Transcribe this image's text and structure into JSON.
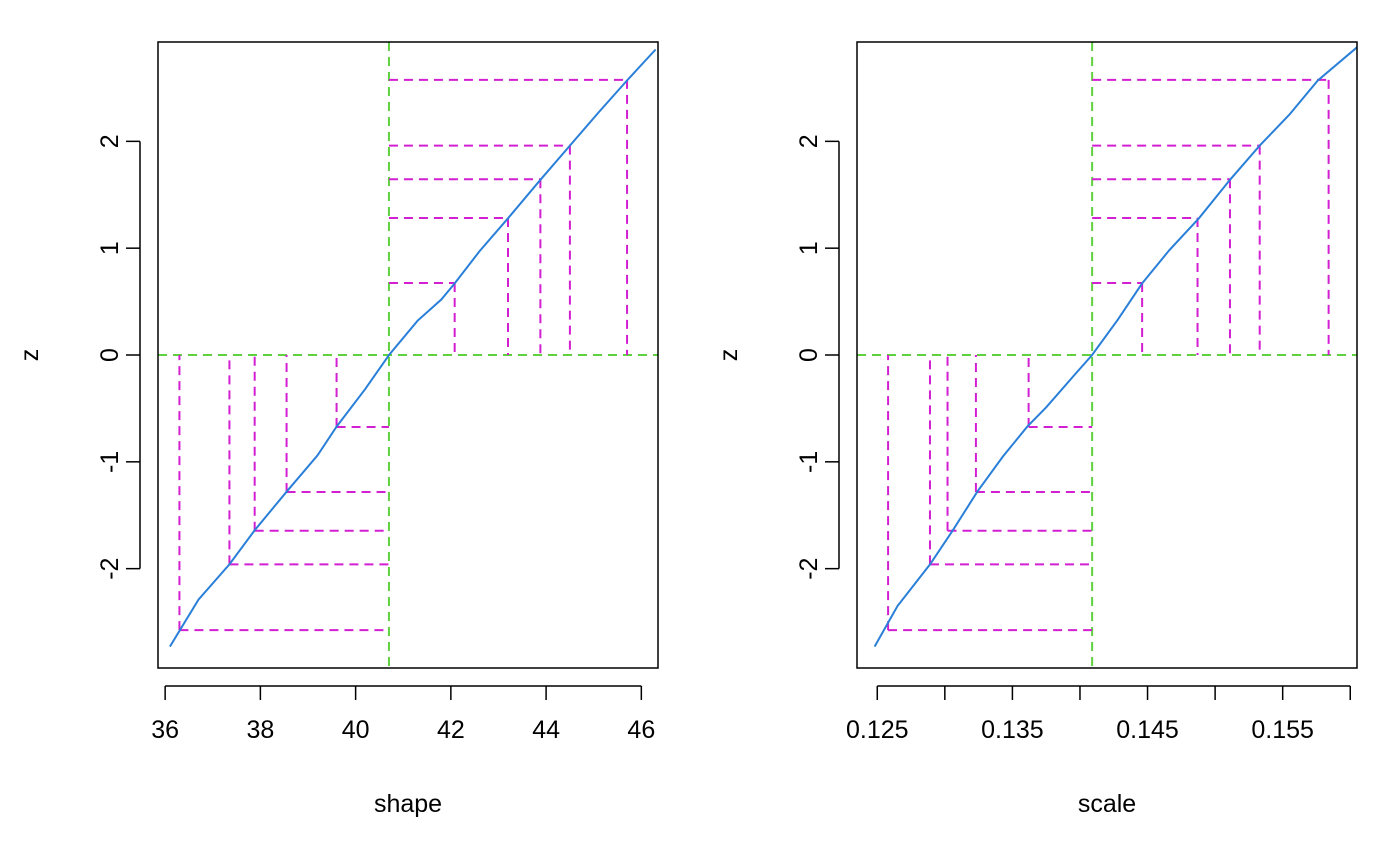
{
  "chart_data": [
    {
      "type": "line",
      "xlabel": "shape",
      "ylabel": "z",
      "xlim": [
        35.85,
        46.35
      ],
      "ylim": [
        -2.93,
        2.93
      ],
      "x_ticks": [
        36,
        38,
        40,
        42,
        44,
        46
      ],
      "x_tick_labels": [
        "36",
        "38",
        "40",
        "42",
        "44",
        "46"
      ],
      "y_ticks": [
        -2,
        -1,
        0,
        1,
        2
      ],
      "y_tick_labels": [
        "-2",
        "-1",
        "0",
        "1",
        "2"
      ],
      "estimate": 40.7,
      "profile_x": [
        36.1,
        36.7,
        37.35,
        37.88,
        38.55,
        39.2,
        39.6,
        40.2,
        40.7,
        41.3,
        41.8,
        42.08,
        42.6,
        43.2,
        43.88,
        44.5,
        45.1,
        45.7,
        46.3
      ],
      "profile_z": [
        -2.73,
        -2.29,
        -1.96,
        -1.64,
        -1.28,
        -0.94,
        -0.67,
        -0.32,
        0.0,
        0.32,
        0.52,
        0.67,
        0.97,
        1.28,
        1.64,
        1.96,
        2.27,
        2.57,
        2.86
      ],
      "intervals": [
        {
          "z": 0.674,
          "lower": 39.6,
          "upper": 42.08
        },
        {
          "z": 1.282,
          "lower": 38.55,
          "upper": 43.2
        },
        {
          "z": 1.645,
          "lower": 37.88,
          "upper": 43.88
        },
        {
          "z": 1.96,
          "lower": 37.35,
          "upper": 44.5
        },
        {
          "z": 2.576,
          "lower": 36.3,
          "upper": 45.7
        }
      ]
    },
    {
      "type": "line",
      "xlabel": "scale",
      "ylabel": "z",
      "xlim": [
        0.1235,
        0.1605
      ],
      "ylim": [
        -2.93,
        2.93
      ],
      "x_ticks": [
        0.125,
        0.13,
        0.135,
        0.14,
        0.145,
        0.15,
        0.155,
        0.16
      ],
      "x_tick_labels": [
        "0.125",
        "",
        "0.135",
        "",
        "0.145",
        "",
        "0.155",
        ""
      ],
      "y_ticks": [
        -2,
        -1,
        0,
        1,
        2
      ],
      "y_tick_labels": [
        "-2",
        "-1",
        "0",
        "1",
        "2"
      ],
      "estimate": 0.1409,
      "profile_x": [
        0.1248,
        0.1265,
        0.1289,
        0.1306,
        0.1324,
        0.1343,
        0.1361,
        0.1375,
        0.1395,
        0.1409,
        0.1428,
        0.1446,
        0.1466,
        0.1488,
        0.1511,
        0.1533,
        0.1555,
        0.1576,
        0.1605
      ],
      "profile_z": [
        -2.73,
        -2.35,
        -1.96,
        -1.64,
        -1.28,
        -0.95,
        -0.67,
        -0.49,
        -0.2,
        0.0,
        0.33,
        0.67,
        0.98,
        1.28,
        1.64,
        1.96,
        2.25,
        2.57,
        2.88
      ],
      "intervals": [
        {
          "z": 0.674,
          "lower": 0.1362,
          "upper": 0.1446
        },
        {
          "z": 1.282,
          "lower": 0.1323,
          "upper": 0.1487
        },
        {
          "z": 1.645,
          "lower": 0.1302,
          "upper": 0.1511
        },
        {
          "z": 1.96,
          "lower": 0.1289,
          "upper": 0.1533
        },
        {
          "z": 2.576,
          "lower": 0.1258,
          "upper": 0.1584
        }
      ]
    }
  ],
  "colors": {
    "profile_line": "#2a7fd8",
    "estimate_lines": "#5fd13f",
    "interval_lines": "#d21fd2",
    "axes": "#000000"
  }
}
